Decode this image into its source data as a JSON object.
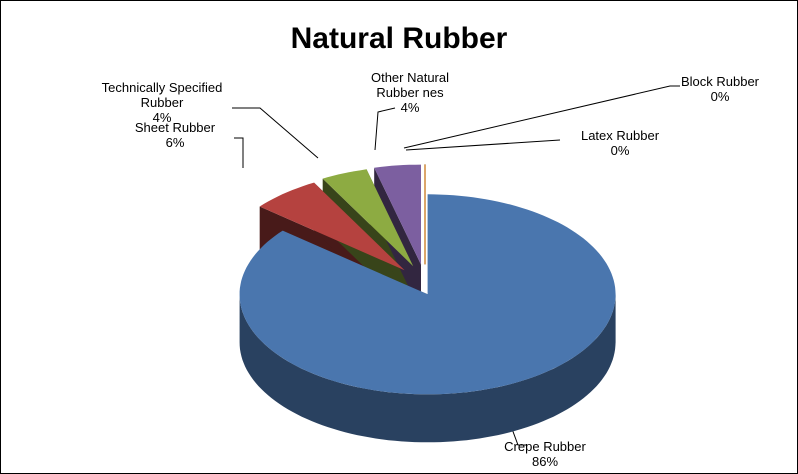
{
  "chart_data": {
    "type": "pie",
    "title": "Natural Rubber",
    "categories": [
      "Crepe Rubber",
      "Sheet Rubber",
      "Technically Specified Rubber",
      "Other Natural Rubber nes",
      "Block Rubber",
      "Latex Rubber"
    ],
    "values": [
      86,
      6,
      4,
      4,
      0,
      0
    ],
    "value_labels": [
      "86%",
      "6%",
      "4%",
      "4%",
      "0%",
      "0%"
    ],
    "colors": [
      "#4a76ae",
      "#b5423f",
      "#8dab42",
      "#7c5fa0",
      "#3d9cc4",
      "#f29a44"
    ]
  }
}
